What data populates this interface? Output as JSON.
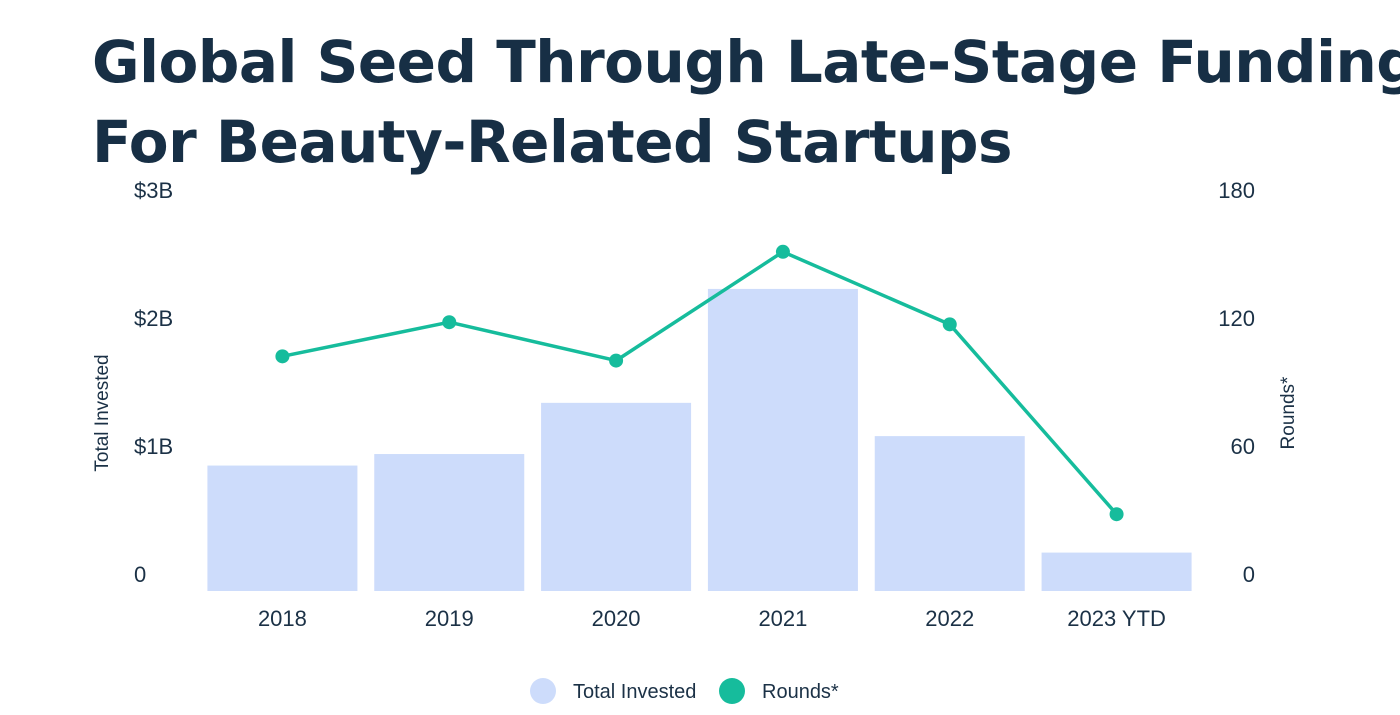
{
  "chart_data": {
    "type": "bar",
    "title": [
      "Global Seed Through Late-Stage Funding",
      "For Beauty-Related Startups"
    ],
    "categories": [
      "2018",
      "2019",
      "2020",
      "2021",
      "2022",
      "2023 YTD"
    ],
    "series": [
      {
        "name": "Total Invested",
        "type": "bar",
        "axis": "left",
        "color": "#cddcfb",
        "values": [
          0.98,
          1.07,
          1.47,
          2.36,
          1.21,
          0.3
        ]
      },
      {
        "name": "Rounds*",
        "type": "line",
        "axis": "right",
        "color": "#16bc9c",
        "values": [
          110,
          126,
          108,
          159,
          125,
          36
        ]
      }
    ],
    "y_left": {
      "label": "Total Invested",
      "range": [
        0,
        3
      ],
      "ticks": [
        0,
        1,
        2,
        3
      ],
      "tick_labels": [
        "0",
        "$1B",
        "$2B",
        "$3B"
      ]
    },
    "y_right": {
      "label": "Rounds*",
      "range": [
        0,
        180
      ],
      "ticks": [
        0,
        60,
        120,
        180
      ],
      "tick_labels": [
        "0",
        "60",
        "120",
        "180"
      ]
    },
    "grid": false,
    "legend": {
      "position": "bottom-center",
      "entries": [
        "Total Invested",
        "Rounds*"
      ]
    }
  }
}
